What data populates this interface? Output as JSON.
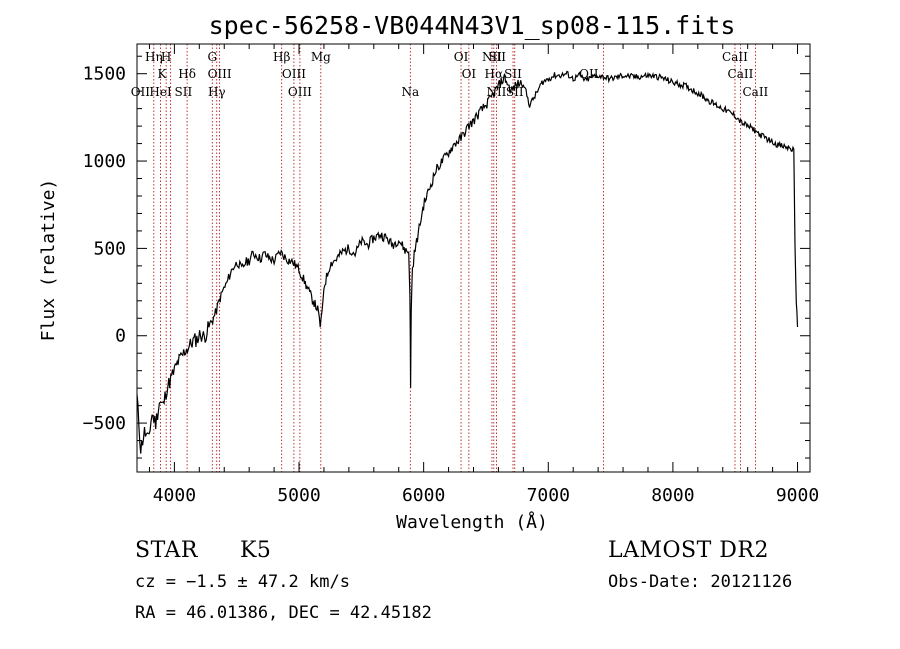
{
  "chart_data": {
    "type": "line",
    "title": "spec-56258-VB044N43V1_sp08-115.fits",
    "xlabel": "Wavelength (Å)",
    "ylabel": "Flux (relative)",
    "xlim": [
      3700,
      9100
    ],
    "ylim": [
      -780,
      1670
    ],
    "xticks": [
      4000,
      5000,
      6000,
      7000,
      8000,
      9000
    ],
    "yticks": [
      -500,
      0,
      500,
      1000,
      1500
    ],
    "grid": false,
    "series": [
      {
        "x": [
          3700,
          3730,
          3760,
          3790,
          3820,
          3850,
          3880,
          3910,
          3940,
          3970,
          4000,
          4030,
          4060,
          4090,
          4120,
          4150,
          4180,
          4210,
          4240,
          4270,
          4300,
          4330,
          4360,
          4390,
          4420,
          4450,
          4480,
          4510,
          4540,
          4570,
          4600,
          4630,
          4660,
          4690,
          4720,
          4750,
          4800,
          4850,
          4900,
          4950,
          5000,
          5050,
          5100,
          5150,
          5170,
          5185,
          5200,
          5250,
          5300,
          5350,
          5400,
          5450,
          5500,
          5550,
          5600,
          5650,
          5700,
          5750,
          5800,
          5850,
          5880,
          5890,
          5895,
          5900,
          5910,
          5925,
          5950,
          6000,
          6050,
          6100,
          6150,
          6200,
          6250,
          6300,
          6350,
          6400,
          6450,
          6500,
          6550,
          6600,
          6650,
          6700,
          6750,
          6800,
          6850,
          6900,
          6950,
          7000,
          7050,
          7100,
          7150,
          7200,
          7250,
          7300,
          7350,
          7400,
          7450,
          7500,
          7600,
          7700,
          7800,
          7900,
          8000,
          8100,
          8200,
          8300,
          8400,
          8500,
          8550,
          8600,
          8650,
          8700,
          8750,
          8800,
          8850,
          8900,
          8950,
          8970,
          8980,
          8990,
          9000
        ],
        "y": [
          -350,
          -650,
          -550,
          -600,
          -450,
          -500,
          -380,
          -400,
          -300,
          -250,
          -200,
          -150,
          -120,
          -80,
          -60,
          -30,
          -20,
          10,
          -10,
          40,
          80,
          130,
          200,
          260,
          300,
          360,
          400,
          420,
          380,
          420,
          430,
          470,
          460,
          440,
          470,
          450,
          430,
          480,
          440,
          420,
          380,
          300,
          220,
          150,
          60,
          120,
          280,
          410,
          440,
          480,
          500,
          470,
          540,
          520,
          560,
          580,
          560,
          520,
          550,
          490,
          480,
          250,
          -300,
          150,
          380,
          470,
          560,
          750,
          850,
          950,
          1000,
          1050,
          1100,
          1130,
          1190,
          1230,
          1280,
          1320,
          1370,
          1430,
          1480,
          1400,
          1440,
          1450,
          1320,
          1380,
          1450,
          1470,
          1490,
          1490,
          1500,
          1470,
          1490,
          1460,
          1480,
          1490,
          1480,
          1470,
          1490,
          1480,
          1490,
          1480,
          1450,
          1430,
          1390,
          1340,
          1300,
          1260,
          1220,
          1200,
          1180,
          1150,
          1130,
          1110,
          1090,
          1080,
          1070,
          1060,
          500,
          200,
          50
        ]
      }
    ],
    "line_markers": [
      {
        "label": "Hη",
        "x": 3835,
        "row": 0
      },
      {
        "label": "H",
        "x": 3934,
        "row": 0
      },
      {
        "label": "G",
        "x": 4304,
        "row": 0
      },
      {
        "label": "Hβ",
        "x": 4861,
        "row": 0
      },
      {
        "label": "Mg",
        "x": 5175,
        "row": 0
      },
      {
        "label": "OI",
        "x": 6300,
        "row": 0
      },
      {
        "label": "NII",
        "x": 6548,
        "row": 0
      },
      {
        "label": "SII",
        "x": 6590,
        "row": 0
      },
      {
        "label": "CaII",
        "x": 8498,
        "row": 0
      },
      {
        "label": "K",
        "x": 3900,
        "row": 1
      },
      {
        "label": "Hδ",
        "x": 4102,
        "row": 1
      },
      {
        "label": "OIII",
        "x": 4363,
        "row": 1
      },
      {
        "label": "OIII",
        "x": 4959,
        "row": 1
      },
      {
        "label": "OI",
        "x": 6363,
        "row": 1
      },
      {
        "label": "Hα",
        "x": 6563,
        "row": 1
      },
      {
        "label": "SII",
        "x": 6717,
        "row": 1
      },
      {
        "label": "OII",
        "x": 7325,
        "row": 1
      },
      {
        "label": "CaII",
        "x": 8542,
        "row": 1
      },
      {
        "label": "OII",
        "x": 3727,
        "row": 2
      },
      {
        "label": "HeI",
        "x": 3889,
        "row": 2
      },
      {
        "label": "SII",
        "x": 4072,
        "row": 2
      },
      {
        "label": "Hγ",
        "x": 4340,
        "row": 2
      },
      {
        "label": "OIII",
        "x": 5007,
        "row": 2
      },
      {
        "label": "Na",
        "x": 5893,
        "row": 2
      },
      {
        "label": "NII",
        "x": 6584,
        "row": 2
      },
      {
        "label": "SII",
        "x": 6731,
        "row": 2
      },
      {
        "label": "CaII",
        "x": 8662,
        "row": 2
      }
    ],
    "marker_line_x": [
      3835,
      3889,
      3934,
      3970,
      4102,
      4304,
      4340,
      4363,
      4861,
      4959,
      5007,
      5175,
      5893,
      6300,
      6363,
      6548,
      6563,
      6584,
      6717,
      6731,
      7444,
      8498,
      8542,
      8662
    ]
  },
  "info": {
    "object_class": "STAR",
    "subclass": "K5",
    "survey": "LAMOST DR2",
    "redshift": "cz = −1.5 ± 47.2 km/s",
    "obs_date": "Obs-Date: 20121126",
    "coords": "RA =  46.01386, DEC =  42.45182"
  }
}
